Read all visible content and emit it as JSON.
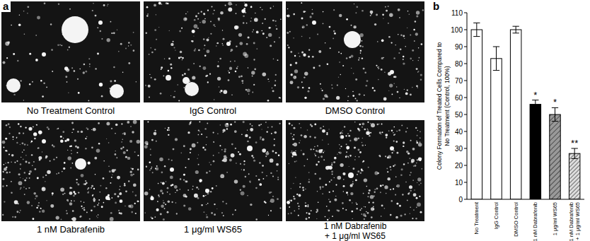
{
  "panel_labels": [
    "a",
    "b"
  ],
  "panel_a": {
    "images": [
      {
        "caption": "No Treatment Control"
      },
      {
        "caption": "IgG Control"
      },
      {
        "caption": "DMSO Control"
      },
      {
        "caption": "1 nM Dabrafenib"
      },
      {
        "caption": "1 μg/ml WS65"
      },
      {
        "caption": "1 nM Dabrafenib + 1 μg/ml WS65"
      }
    ]
  },
  "chart_data": {
    "type": "bar",
    "y_label": [
      "Colony Formation of Treated Cells Compared to",
      "No Treatment (Control, 100%)"
    ],
    "categories": [
      "No Treatment",
      "IgG Control",
      "DMSO Control",
      "1 nM Dabrafenib",
      "1 μg/ml WS65",
      "1 nM Dabrafenib + 1 μg/ml WS65"
    ],
    "values": [
      100,
      83,
      100,
      56,
      50,
      27
    ],
    "errors": [
      4,
      7,
      2,
      2.5,
      4,
      3
    ],
    "colors": [
      "#ffffff",
      "#ffffff",
      "#ffffff",
      "#000000",
      "#999999",
      "#dddddd"
    ],
    "annotations": [
      {
        "category": "1 nM Dabrafenib",
        "text": "*"
      },
      {
        "category": "1 μg/ml WS65",
        "text": "*"
      },
      {
        "category": "1 nM Dabrafenib + 1 μg/ml WS65",
        "text": "**"
      }
    ],
    "ylim": [
      0,
      110
    ],
    "yticks": [
      0,
      10,
      20,
      30,
      40,
      50,
      60,
      70,
      80,
      90,
      100,
      110
    ]
  }
}
